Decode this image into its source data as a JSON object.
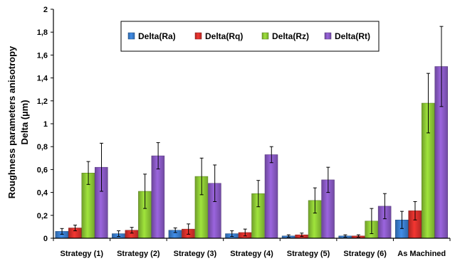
{
  "chart_data": {
    "type": "bar",
    "title": "",
    "ylabel_line1": "Roughness parameters anisotropy",
    "ylabel_line2": "Delta (µm)",
    "xlabel": "",
    "ylim": [
      0,
      2
    ],
    "yticks": [
      "0",
      "0,2",
      "0,4",
      "0,6",
      "0,8",
      "1",
      "1,2",
      "1,4",
      "1,6",
      "1,8",
      "2"
    ],
    "ytick_values": [
      0,
      0.2,
      0.4,
      0.6,
      0.8,
      1.0,
      1.2,
      1.4,
      1.6,
      1.8,
      2.0
    ],
    "categories": [
      "Strategy (1)",
      "Strategy (2)",
      "Strategy (3)",
      "Strategy (4)",
      "Strategy (5)",
      "Strategy (6)",
      "As Machined"
    ],
    "legend_position": "top-center",
    "grid": false,
    "series": [
      {
        "name": "Delta(Ra)",
        "color": "#3a7fd0",
        "values": [
          0.06,
          0.04,
          0.07,
          0.04,
          0.02,
          0.02,
          0.16
        ],
        "errors": [
          0.025,
          0.025,
          0.02,
          0.025,
          0.01,
          0.01,
          0.075
        ]
      },
      {
        "name": "Delta(Rq)",
        "color": "#d9302c",
        "values": [
          0.09,
          0.07,
          0.08,
          0.05,
          0.03,
          0.02,
          0.24
        ],
        "errors": [
          0.025,
          0.025,
          0.045,
          0.03,
          0.015,
          0.01,
          0.08
        ]
      },
      {
        "name": "Delta(Rz)",
        "color": "#8fcc36",
        "values": [
          0.57,
          0.41,
          0.54,
          0.39,
          0.33,
          0.15,
          1.18
        ],
        "errors": [
          0.1,
          0.15,
          0.16,
          0.115,
          0.11,
          0.11,
          0.26
        ]
      },
      {
        "name": "Delta(Rt)",
        "color": "#8a5ac6",
        "values": [
          0.62,
          0.72,
          0.48,
          0.73,
          0.51,
          0.28,
          1.5
        ],
        "errors": [
          0.21,
          0.115,
          0.16,
          0.07,
          0.11,
          0.11,
          0.35
        ]
      }
    ]
  }
}
